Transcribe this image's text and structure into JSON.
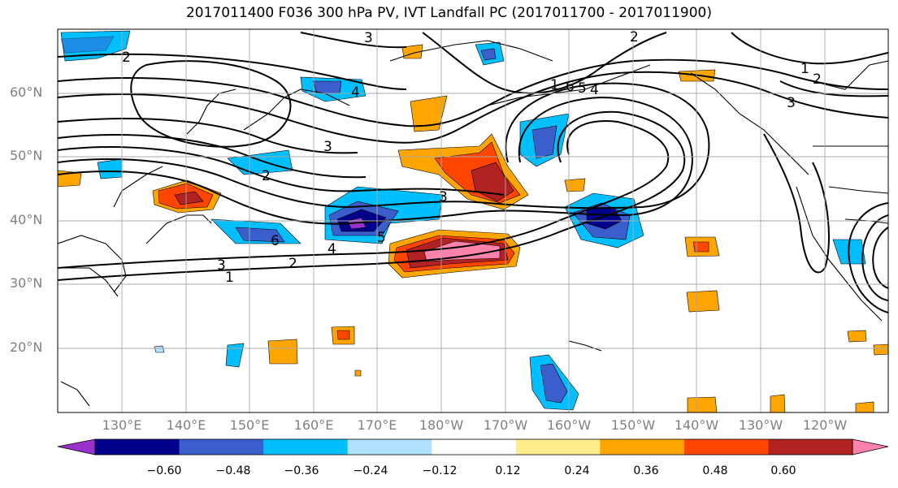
{
  "title": "2017011400 F036 300 hPa PV, IVT Landfall PC (2017011700 - 2017011900)",
  "lat_labels": [
    "60°N",
    "50°N",
    "40°N",
    "30°N",
    "20°N"
  ],
  "lon_labels": [
    "130°E",
    "140°E",
    "150°E",
    "160°E",
    "170°E",
    "180°W",
    "170°W",
    "160°W",
    "150°W",
    "140°W",
    "130°W",
    "120°W"
  ],
  "contour_labels": [
    "2",
    "3",
    "2",
    "3",
    "6",
    "4",
    "5",
    "3",
    "2",
    "1",
    "3",
    "4",
    "2",
    "1",
    "2",
    "3",
    "1",
    "6",
    "5",
    "4"
  ],
  "colorbar": {
    "ticks": [
      "−0.60",
      "−0.48",
      "−0.36",
      "−0.24",
      "−0.12",
      "0.12",
      "0.24",
      "0.36",
      "0.48",
      "0.60"
    ],
    "colors": [
      "#9932CC",
      "#00008B",
      "#3A5FCD",
      "#00BFFF",
      "#B0E2FF",
      "#FFFFFF",
      "#FFEC8B",
      "#FFA500",
      "#FF4500",
      "#B22222",
      "#FF82AB"
    ]
  }
}
